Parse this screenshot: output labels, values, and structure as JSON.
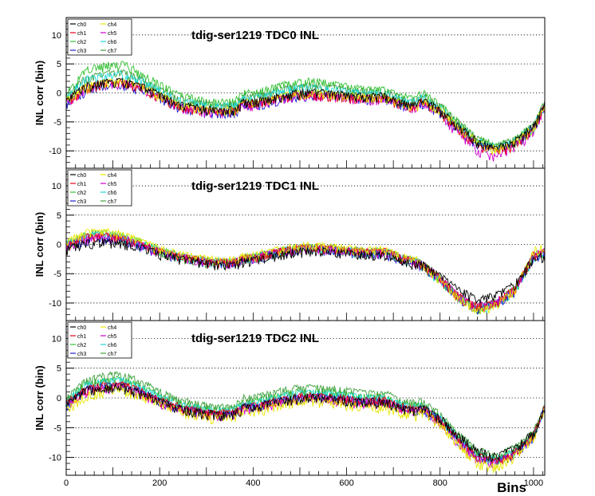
{
  "colors": {
    "ch0": "#000000",
    "ch1": "#e8001c",
    "ch2": "#30c030",
    "ch3": "#2020d0",
    "ch4": "#e8e800",
    "ch5": "#d000d0",
    "ch6": "#20d8d8",
    "ch7": "#40a040",
    "frame": "#000000",
    "grid": "#000000"
  },
  "chart_data": [
    {
      "type": "line",
      "title": "tdig-ser1219 TDC0 INL",
      "xlabel": "",
      "ylabel": "INL corr (bin)",
      "xlim": [
        0,
        1024
      ],
      "ylim": [
        -13,
        13
      ],
      "xticks": [
        "0",
        "200",
        "400",
        "600",
        "800",
        "1000"
      ],
      "yticks": [
        "-10",
        "-5",
        "0",
        "5",
        "10"
      ],
      "grid": "horizontal dotted",
      "legend": "top-left",
      "x": [
        0,
        40,
        80,
        120,
        160,
        200,
        240,
        280,
        320,
        360,
        380,
        400,
        440,
        480,
        520,
        560,
        600,
        640,
        680,
        720,
        750,
        760,
        800,
        840,
        880,
        920,
        960,
        1000,
        1024
      ],
      "series": [
        {
          "name": "ch0",
          "values": [
            -1,
            1.5,
            2.2,
            2.5,
            1.5,
            0,
            -1.5,
            -2.2,
            -2.6,
            -2.5,
            -1.2,
            -1.2,
            -0.6,
            0.2,
            0.5,
            0.3,
            0,
            -0.3,
            -0.2,
            -1.4,
            -1.8,
            -0.8,
            -2.5,
            -5.5,
            -8,
            -9.2,
            -8,
            -5.5,
            -1.5
          ]
        },
        {
          "name": "ch1",
          "values": [
            -1.2,
            1.2,
            2,
            2.2,
            1.2,
            -0.2,
            -1.8,
            -2.5,
            -2.9,
            -2.8,
            -1.5,
            -1.5,
            -0.9,
            -0.1,
            0.2,
            0,
            -0.3,
            -0.6,
            -0.5,
            -1.7,
            -2.1,
            -1.1,
            -2.9,
            -6,
            -8.7,
            -9.8,
            -8.6,
            -6,
            -1.8
          ]
        },
        {
          "name": "ch2",
          "values": [
            0,
            4.2,
            5,
            5.5,
            3.8,
            1.8,
            0,
            -0.8,
            -1.2,
            -1.1,
            0.3,
            0.3,
            1.2,
            2,
            2.4,
            2,
            1.5,
            1,
            0.9,
            -0.3,
            -0.6,
            0.6,
            -1.6,
            -4.8,
            -7.5,
            -8.8,
            -7.8,
            -5.3,
            -1
          ]
        },
        {
          "name": "ch3",
          "values": [
            -1.6,
            0.8,
            1.6,
            1.8,
            0.9,
            -0.5,
            -2,
            -2.7,
            -3,
            -2.9,
            -1.7,
            -1.7,
            -1,
            -0.3,
            0,
            -0.1,
            -0.4,
            -0.7,
            -0.6,
            -1.8,
            -2.2,
            -1.2,
            -3,
            -6,
            -8.6,
            -9.6,
            -8.5,
            -5.9,
            -1.7
          ]
        },
        {
          "name": "ch4",
          "values": [
            -1,
            1.4,
            2.1,
            2.4,
            1.4,
            0,
            -1.6,
            -2.3,
            -2.7,
            -2.6,
            -1.3,
            -1.3,
            -0.7,
            0.1,
            0.4,
            0.2,
            -0.1,
            -0.4,
            -0.3,
            -1.5,
            -1.9,
            -0.9,
            -2.6,
            -5.6,
            -8.2,
            -9.4,
            -8.2,
            -5.6,
            -1.5
          ]
        },
        {
          "name": "ch5",
          "values": [
            -1.2,
            1.1,
            1.9,
            2.1,
            1.1,
            -0.4,
            -2,
            -2.6,
            -3.1,
            -3,
            -1.7,
            -1.7,
            -1,
            -0.2,
            0.1,
            -0.1,
            -0.4,
            -0.7,
            -0.6,
            -1.8,
            -2.2,
            -1.2,
            -3.3,
            -6.8,
            -9.6,
            -10.5,
            -9,
            -6.2,
            -1.8
          ]
        },
        {
          "name": "ch6",
          "values": [
            -0.4,
            2.6,
            3.3,
            3.6,
            2.4,
            0.8,
            -0.9,
            -1.6,
            -2,
            -1.9,
            -0.6,
            -0.6,
            0.2,
            1,
            1.3,
            1,
            0.6,
            0.2,
            0.2,
            -1,
            -1.3,
            -0.3,
            -2.2,
            -5.4,
            -8,
            -9.1,
            -8,
            -5.5,
            -1.3
          ]
        },
        {
          "name": "ch7",
          "values": [
            -0.2,
            2.8,
            3.6,
            4,
            2.6,
            1,
            -0.7,
            -1.4,
            -1.8,
            -1.7,
            -0.3,
            -0.3,
            0.5,
            1.3,
            1.6,
            1.3,
            0.9,
            0.5,
            0.5,
            -0.7,
            -1,
            0,
            -1.9,
            -5,
            -7.6,
            -8.8,
            -7.7,
            -5.2,
            -1.1
          ]
        }
      ]
    },
    {
      "type": "line",
      "title": "tdig-ser1219 TDC1 INL",
      "xlabel": "",
      "ylabel": "INL corr (bin)",
      "xlim": [
        0,
        1024
      ],
      "ylim": [
        -13,
        13
      ],
      "xticks": [
        "0",
        "200",
        "400",
        "600",
        "800",
        "1000"
      ],
      "yticks": [
        "-10",
        "-5",
        "0",
        "5",
        "10"
      ],
      "grid": "horizontal dotted",
      "legend": "top-left",
      "x": [
        0,
        40,
        80,
        120,
        160,
        200,
        240,
        280,
        320,
        360,
        380,
        400,
        440,
        480,
        520,
        560,
        600,
        640,
        680,
        720,
        750,
        760,
        800,
        840,
        880,
        920,
        960,
        1000,
        1024
      ],
      "series": [
        {
          "name": "ch0",
          "values": [
            -0.5,
            0.5,
            0.8,
            0.6,
            -0.3,
            -1.2,
            -2,
            -2.6,
            -3,
            -3,
            -2.5,
            -2.3,
            -1.6,
            -1,
            -0.7,
            -0.9,
            -1.2,
            -1.4,
            -1.3,
            -2.5,
            -3,
            -3,
            -5,
            -7.5,
            -9,
            -8.3,
            -6.5,
            -2,
            -1.5
          ]
        },
        {
          "name": "ch1",
          "values": [
            0.2,
            1.5,
            1.8,
            1.5,
            0.4,
            -0.8,
            -1.6,
            -2.2,
            -2.6,
            -2.6,
            -2,
            -1.8,
            -1.1,
            -0.4,
            -0.1,
            -0.3,
            -0.6,
            -0.9,
            -0.8,
            -2,
            -2.5,
            -3,
            -5.4,
            -8.5,
            -10.3,
            -9.5,
            -7.2,
            -1.5,
            -0.8
          ]
        },
        {
          "name": "ch2",
          "values": [
            0.5,
            2,
            2.3,
            1.9,
            0.7,
            -0.6,
            -1.5,
            -2.1,
            -2.5,
            -2.5,
            -1.9,
            -1.7,
            -1,
            -0.3,
            0,
            -0.2,
            -0.5,
            -0.8,
            -0.7,
            -1.9,
            -2.4,
            -2.9,
            -5.5,
            -8.6,
            -10.5,
            -9.6,
            -7.3,
            -1.6,
            -0.9
          ]
        },
        {
          "name": "ch3",
          "values": [
            0,
            1.2,
            1.6,
            1.3,
            0.2,
            -1,
            -1.8,
            -2.4,
            -2.8,
            -2.8,
            -2.2,
            -2,
            -1.3,
            -0.6,
            -0.3,
            -0.5,
            -0.8,
            -1.1,
            -1,
            -2.2,
            -2.7,
            -3.1,
            -5.6,
            -8.8,
            -10.7,
            -9.8,
            -7.5,
            -1.7,
            -1
          ]
        },
        {
          "name": "ch4",
          "values": [
            0.8,
            2.3,
            2.6,
            2.1,
            0.9,
            -0.4,
            -1.3,
            -1.9,
            -2.3,
            -2.3,
            -1.7,
            -1.5,
            -0.8,
            -0.1,
            0.2,
            0,
            -0.3,
            -0.6,
            -0.5,
            -1.7,
            -2.2,
            -2.8,
            -5.6,
            -8.9,
            -11,
            -10,
            -7.4,
            -0.8,
            0.3
          ]
        },
        {
          "name": "ch5",
          "values": [
            0.1,
            1.4,
            1.7,
            1.4,
            0.3,
            -0.9,
            -1.7,
            -2.3,
            -2.7,
            -2.7,
            -2.1,
            -1.9,
            -1.2,
            -0.5,
            -0.2,
            -0.4,
            -0.7,
            -1,
            -0.9,
            -2.1,
            -2.6,
            -3,
            -5.3,
            -8.4,
            -10.2,
            -9.4,
            -7.1,
            -1.5,
            -0.8
          ]
        },
        {
          "name": "ch6",
          "values": [
            0.4,
            1.8,
            2.1,
            1.7,
            0.5,
            -0.7,
            -1.6,
            -2.2,
            -2.6,
            -2.6,
            -2,
            -1.8,
            -1.1,
            -0.4,
            -0.1,
            -0.3,
            -0.6,
            -0.9,
            -0.8,
            -2,
            -2.5,
            -3,
            -5.5,
            -8.7,
            -10.6,
            -9.7,
            -7.4,
            -1.6,
            -0.9
          ]
        },
        {
          "name": "ch7",
          "values": [
            0.3,
            1.6,
            1.9,
            1.6,
            0.4,
            -0.8,
            -1.7,
            -2.3,
            -2.7,
            -2.7,
            -2.1,
            -1.9,
            -1.2,
            -0.5,
            -0.2,
            -0.4,
            -0.7,
            -1,
            -0.9,
            -2.1,
            -2.6,
            -3,
            -5.4,
            -8.5,
            -10.4,
            -9.5,
            -7.2,
            -1.5,
            -0.8
          ]
        }
      ]
    },
    {
      "type": "line",
      "title": "tdig-ser1219 TDC2 INL",
      "xlabel": "Bins",
      "ylabel": "INL corr (bin)",
      "xlim": [
        0,
        1024
      ],
      "ylim": [
        -13,
        13
      ],
      "xticks": [
        "0",
        "200",
        "400",
        "600",
        "800",
        "1000"
      ],
      "yticks": [
        "-10",
        "-5",
        "0",
        "5",
        "10"
      ],
      "grid": "horizontal dotted",
      "legend": "top-left",
      "x": [
        0,
        40,
        80,
        120,
        160,
        200,
        240,
        280,
        320,
        360,
        380,
        400,
        440,
        480,
        520,
        560,
        600,
        640,
        680,
        720,
        750,
        760,
        800,
        840,
        880,
        920,
        960,
        1000,
        1024
      ],
      "series": [
        {
          "name": "ch0",
          "values": [
            -0.8,
            1.5,
            2,
            2.2,
            1.2,
            -0.2,
            -1.3,
            -2,
            -2.4,
            -2.3,
            -1.2,
            -1.2,
            -0.5,
            0.2,
            0.5,
            0.3,
            0,
            -0.3,
            -0.2,
            -1.4,
            -1.8,
            -1.3,
            -3,
            -6,
            -8.5,
            -9.5,
            -8.2,
            -5.5,
            -1.5
          ]
        },
        {
          "name": "ch1",
          "values": [
            -0.6,
            1.8,
            2.4,
            2.6,
            1.5,
            0,
            -1.1,
            -1.8,
            -2.2,
            -2.1,
            -1,
            -1,
            -0.3,
            0.4,
            0.7,
            0.5,
            0.2,
            -0.1,
            0,
            -1.2,
            -1.6,
            -1.2,
            -3.3,
            -6.7,
            -9.4,
            -10.3,
            -8.8,
            -5.9,
            -1.4
          ]
        },
        {
          "name": "ch2",
          "values": [
            -0.2,
            2.6,
            3.3,
            3.5,
            2.3,
            0.7,
            -0.5,
            -1.2,
            -1.6,
            -1.5,
            -0.3,
            -0.3,
            0.5,
            1.2,
            1.5,
            1.3,
            1,
            0.6,
            0.6,
            -0.6,
            -1,
            -0.7,
            -2.9,
            -6.3,
            -9,
            -10,
            -8.5,
            -5.7,
            -1.2
          ]
        },
        {
          "name": "ch3",
          "values": [
            -0.7,
            1.7,
            2.3,
            2.5,
            1.4,
            -0.1,
            -1.2,
            -1.9,
            -2.3,
            -2.2,
            -1.1,
            -1.1,
            -0.4,
            0.3,
            0.6,
            0.4,
            0.1,
            -0.2,
            -0.1,
            -1.3,
            -1.7,
            -1.3,
            -3.4,
            -6.8,
            -9.5,
            -10.4,
            -8.9,
            -6,
            -1.4
          ]
        },
        {
          "name": "ch4",
          "values": [
            -1.5,
            0.8,
            1.5,
            1.8,
            0.7,
            -0.7,
            -1.8,
            -2.6,
            -3,
            -2.9,
            -1.8,
            -1.8,
            -1.1,
            -0.4,
            -0.1,
            -0.4,
            -0.8,
            -1.2,
            -1.1,
            -2.3,
            -2.6,
            -1.9,
            -4,
            -7.6,
            -10.6,
            -11.2,
            -9.4,
            -6.3,
            -1.6
          ]
        },
        {
          "name": "ch5",
          "values": [
            -0.9,
            1.4,
            2,
            2.2,
            1.1,
            -0.3,
            -1.4,
            -2.1,
            -2.5,
            -2.4,
            -1.3,
            -1.3,
            -0.6,
            0.1,
            0.4,
            0.2,
            -0.1,
            -0.4,
            -0.3,
            -1.5,
            -1.9,
            -1.4,
            -3.6,
            -7.1,
            -9.9,
            -10.7,
            -9.1,
            -6.1,
            -1.5
          ]
        },
        {
          "name": "ch6",
          "values": [
            -0.3,
            2.3,
            3,
            3.2,
            2,
            0.4,
            -0.7,
            -1.4,
            -1.8,
            -1.7,
            -0.6,
            -0.6,
            0.2,
            0.9,
            1.2,
            1,
            0.7,
            0.3,
            0.3,
            -0.9,
            -1.3,
            -1,
            -3.1,
            -6.5,
            -9.2,
            -10.1,
            -8.6,
            -5.8,
            -1.3
          ]
        },
        {
          "name": "ch7",
          "values": [
            0.3,
            3.2,
            4,
            4.3,
            3,
            1.3,
            0,
            -0.7,
            -1.1,
            -1,
            0.3,
            0.3,
            1.1,
            1.8,
            2.1,
            1.9,
            1.5,
            1.1,
            1.1,
            -0.1,
            -0.5,
            -0.2,
            -2.4,
            -5.8,
            -8.4,
            -9.4,
            -8,
            -5.4,
            -1
          ]
        }
      ]
    }
  ]
}
